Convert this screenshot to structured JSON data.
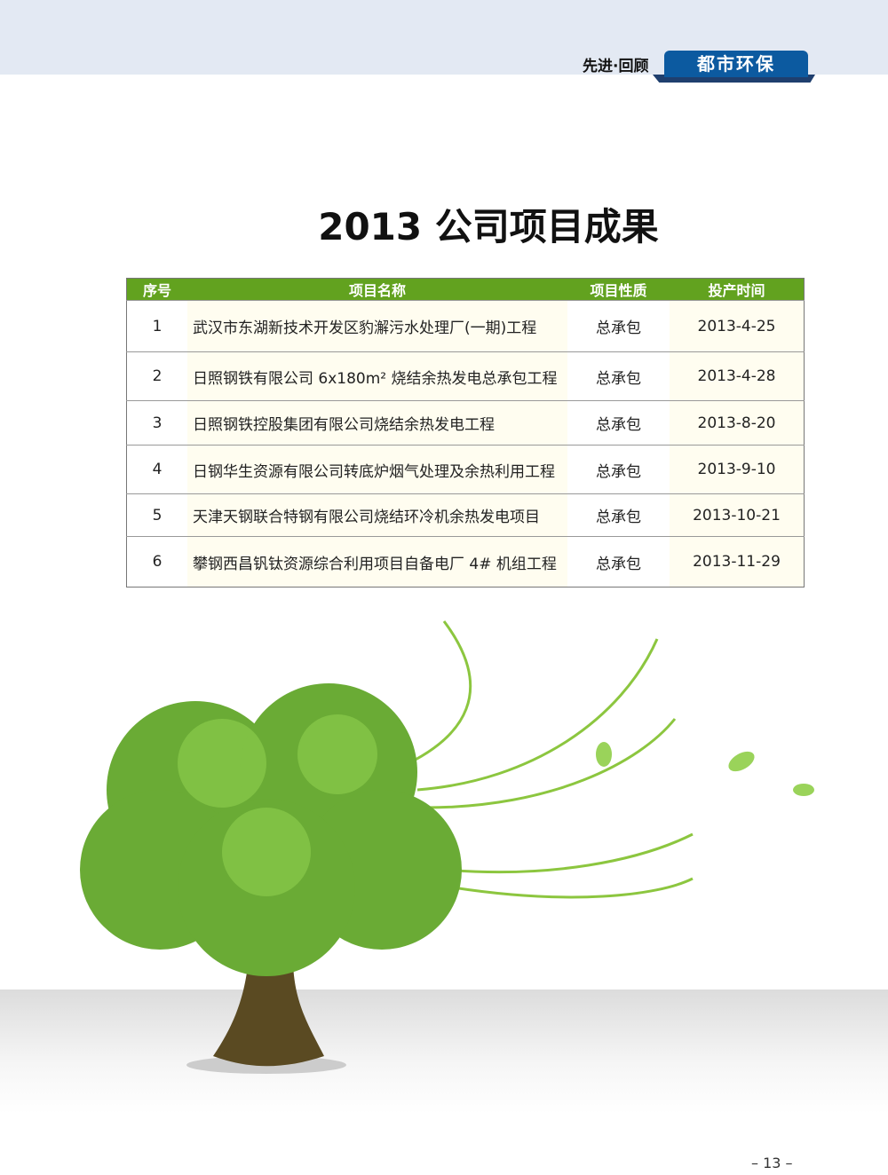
{
  "header": {
    "section": "先进·回顾",
    "magazine": "都市环保"
  },
  "title": "2013 公司项目成果",
  "table": {
    "headers": [
      "序号",
      "项目名称",
      "项目性质",
      "投产时间"
    ],
    "rows": [
      [
        "1",
        "武汉市东湖新技术开发区豹澥污水处理厂(一期)工程",
        "总承包",
        "2013-4-25"
      ],
      [
        "2",
        "日照钢铁有限公司 6x180m² 烧结余热发电总承包工程",
        "总承包",
        "2013-4-28"
      ],
      [
        "3",
        "日照钢铁控股集团有限公司烧结余热发电工程",
        "总承包",
        "2013-8-20"
      ],
      [
        "4",
        "日钢华生资源有限公司转底炉烟气处理及余热利用工程",
        "总承包",
        "2013-9-10"
      ],
      [
        "5",
        "天津天钢联合特钢有限公司烧结环冷机余热发电项目",
        "总承包",
        "2013-10-21"
      ],
      [
        "6",
        "攀钢西昌钒钛资源综合利用项目自备电厂 4# 机组工程",
        "总承包",
        "2013-11-29"
      ]
    ]
  },
  "page_number": "– 13 –",
  "colors": {
    "header_green": "#62a21f",
    "magazine_blue": "#0c5aa0",
    "cream": "#fffdf0"
  }
}
